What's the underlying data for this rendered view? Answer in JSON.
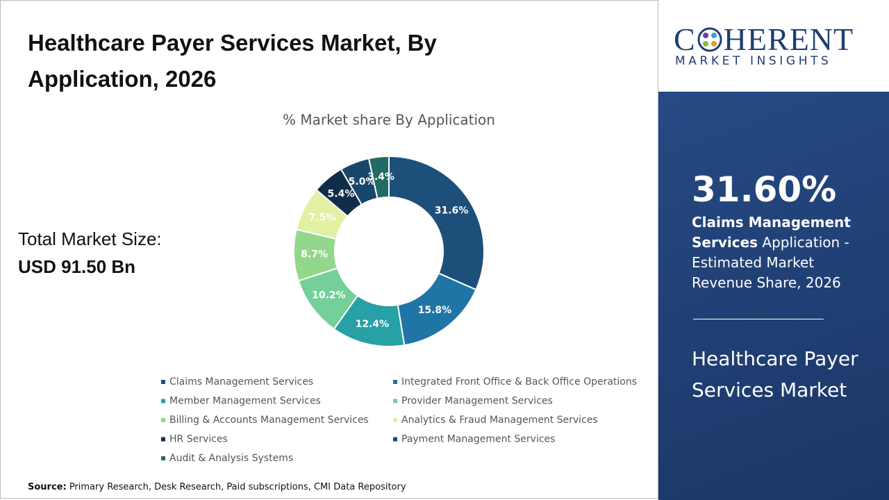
{
  "header": {
    "title": "Healthcare Payer Services Market, By Application, 2026"
  },
  "total": {
    "label": "Total Market Size:",
    "value": "USD 91.50 Bn"
  },
  "chart_data": {
    "type": "donut",
    "title": "% Market share By Application",
    "categories": [
      "Claims Management Services",
      "Integrated Front Office & Back Office Operations",
      "Member Management Services",
      "Provider Management Services",
      "Billing & Accounts Management Services",
      "Analytics & Fraud Management Services",
      "HR Services",
      "Payment Management Services",
      "Audit & Analysis Systems"
    ],
    "values": [
      31.6,
      15.8,
      12.4,
      10.2,
      8.7,
      7.5,
      5.4,
      5.0,
      3.4
    ],
    "value_labels": [
      "31.6%",
      "15.8%",
      "12.4%",
      "10.2%",
      "8.7%",
      "7.5%",
      "5.4%",
      "5.0%",
      "3.4%"
    ],
    "colors": [
      "#1d4f7b",
      "#1f75a6",
      "#27a0a6",
      "#74cf98",
      "#93d78c",
      "#e2f0a2",
      "#0f2d48",
      "#17476b",
      "#216b64"
    ],
    "legend": "bottom"
  },
  "logo": {
    "left": "C",
    "right": "HERENT",
    "tagline": "MARKET INSIGHTS"
  },
  "panel": {
    "share": "31.60%",
    "bold": "Claims Management Services",
    "rest": " Application - Estimated Market Revenue Share, 2026",
    "market": "Healthcare Payer Services Market"
  },
  "source": {
    "label": "Source:",
    "text": " Primary Research, Desk Research, Paid subscriptions, CMI Data Repository"
  }
}
